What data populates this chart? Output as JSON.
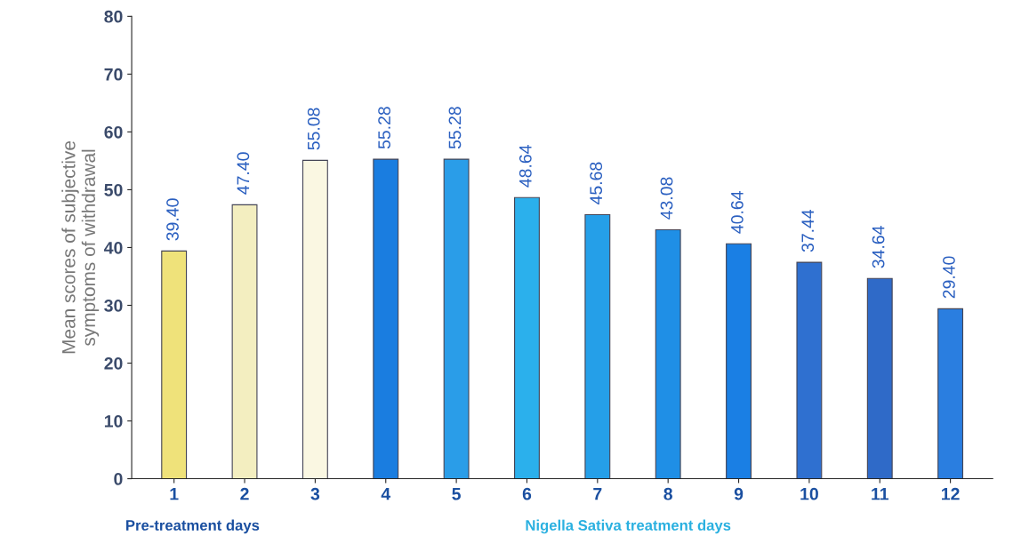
{
  "chart_data": {
    "type": "bar",
    "ylabel": "Mean scores of subjective\nsymptoms of withdrawal",
    "categories": [
      "1",
      "2",
      "3",
      "4",
      "5",
      "6",
      "7",
      "8",
      "9",
      "10",
      "11",
      "12"
    ],
    "values": [
      39.4,
      47.4,
      55.08,
      55.28,
      55.28,
      48.64,
      45.68,
      43.08,
      40.64,
      37.44,
      34.64,
      29.4
    ],
    "value_labels": [
      "39.40",
      "47.40",
      "55.08",
      "55.28",
      "55.28",
      "48.64",
      "45.68",
      "43.08",
      "40.64",
      "37.44",
      "34.64",
      "29.40"
    ],
    "colors": [
      "#efe27a",
      "#f3eec0",
      "#faf7e2",
      "#1a7de0",
      "#2a9de8",
      "#2bb0ec",
      "#259fe8",
      "#1f8fe6",
      "#1a7fe4",
      "#2f70d0",
      "#2f6ac8",
      "#2a7ee0"
    ],
    "ylim": [
      0,
      80
    ],
    "yticks": [
      0,
      10,
      20,
      30,
      40,
      50,
      60,
      70,
      80
    ],
    "grid": false,
    "legend": false,
    "annotations": [
      "Pre-treatment days",
      "Nigella Sativa treatment days"
    ]
  }
}
